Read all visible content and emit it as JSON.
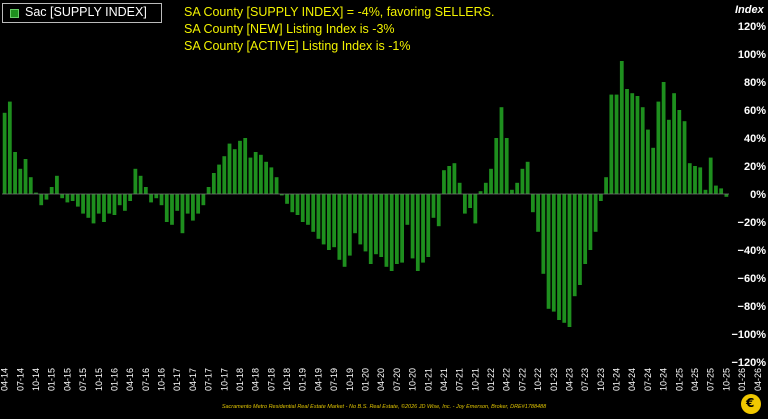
{
  "chart_data": {
    "type": "bar",
    "legend": {
      "label": "Sac [SUPPLY INDEX]",
      "placement": "top-left"
    },
    "annotations": [
      "SA County [SUPPLY INDEX] = -4%, favoring SELLERS.",
      "SA County [NEW] Listing Index is -3%",
      "SA County [ACTIVE] Listing Index is -1%"
    ],
    "ylabel": "Index",
    "ylim": [
      -120,
      120
    ],
    "yticks": [
      "120%",
      "100%",
      "80%",
      "60%",
      "40%",
      "20%",
      "0%",
      "−20%",
      "−40%",
      "−60%",
      "−80%",
      "−100%",
      "−120%"
    ],
    "ytick_values": [
      120,
      100,
      80,
      60,
      40,
      20,
      0,
      -20,
      -40,
      -60,
      -80,
      -100,
      -120
    ],
    "xtick_labels": [
      "04-14",
      "07-14",
      "10-14",
      "01-15",
      "04-15",
      "07-15",
      "10-15",
      "01-16",
      "04-16",
      "07-16",
      "10-16",
      "01-17",
      "04-17",
      "07-17",
      "10-17",
      "01-18",
      "04-18",
      "07-18",
      "10-18",
      "01-19",
      "04-19",
      "07-19",
      "10-19",
      "01-20",
      "04-20",
      "07-20",
      "10-20",
      "01-21",
      "04-21",
      "07-21",
      "10-21",
      "01-22",
      "04-22",
      "07-22",
      "10-22",
      "01-23",
      "04-23",
      "07-23",
      "10-23",
      "01-24",
      "04-24",
      "07-24",
      "10-24",
      "01-25",
      "04-25",
      "07-25",
      "10-25",
      "01-26",
      "04-26"
    ],
    "grid": false,
    "bar_color": "#1e8f1e",
    "values": [
      58,
      66,
      30,
      18,
      25,
      12,
      1,
      -8,
      -4,
      5,
      13,
      -3,
      -6,
      -5,
      -9,
      -14,
      -17,
      -21,
      -14,
      -20,
      -14,
      -15,
      -8,
      -12,
      -5,
      18,
      13,
      5,
      -6,
      -3,
      -8,
      -20,
      -22,
      -12,
      -28,
      -14,
      -19,
      -14,
      -8,
      5,
      15,
      21,
      27,
      36,
      32,
      38,
      40,
      26,
      30,
      28,
      23,
      19,
      12,
      -1,
      -7,
      -13,
      -15,
      -20,
      -22,
      -27,
      -32,
      -36,
      -40,
      -38,
      -47,
      -52,
      -44,
      -28,
      -36,
      -41,
      -50,
      -43,
      -45,
      -52,
      -55,
      -50,
      -49,
      -22,
      -46,
      -55,
      -49,
      -45,
      -17,
      -23,
      17,
      20,
      22,
      8,
      -14,
      -10,
      -21,
      2,
      8,
      18,
      40,
      62,
      40,
      3,
      8,
      18,
      23,
      -13,
      -27,
      -57,
      -82,
      -84,
      -90,
      -92,
      -95,
      -73,
      -65,
      -50,
      -40,
      -27,
      -5,
      12,
      71,
      71,
      95,
      75,
      72,
      70,
      62,
      46,
      33,
      66,
      80,
      53,
      72,
      60,
      52,
      22,
      20,
      19,
      3,
      26,
      6,
      4,
      -2
    ]
  },
  "footer": "Sacramento Metro Residential Real Estate Market - No B.S. Real Estate, ©2026 JD Wise, Inc. - Joy Emerson, Broker, DRE#1788488"
}
